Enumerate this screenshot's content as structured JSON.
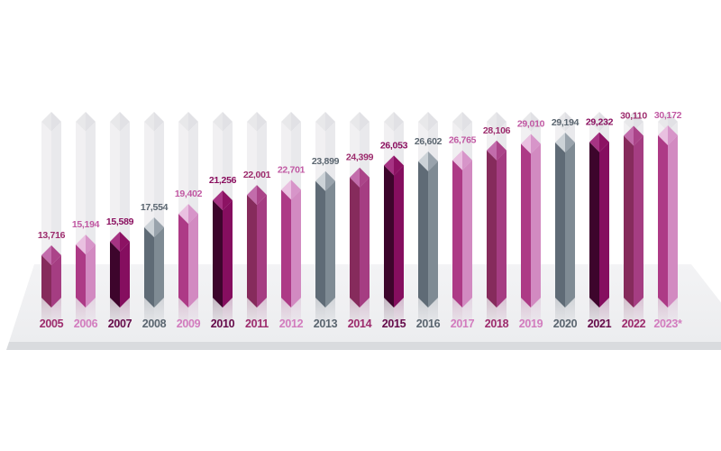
{
  "chart_data": {
    "type": "bar",
    "style": "isometric-3d-column-infographic",
    "title": "",
    "categories": [
      "2005",
      "2006",
      "2007",
      "2008",
      "2009",
      "2010",
      "2011",
      "2012",
      "2013",
      "2014",
      "2015",
      "2016",
      "2017",
      "2018",
      "2019",
      "2020",
      "2021",
      "2022",
      "2023*"
    ],
    "values": [
      13716,
      15194,
      15589,
      17554,
      19402,
      21256,
      22001,
      22701,
      23899,
      24399,
      26053,
      26602,
      26765,
      28106,
      29010,
      29194,
      29232,
      30110,
      30172
    ],
    "value_labels": [
      "13,716",
      "15,194",
      "15,589",
      "17,554",
      "19,402",
      "21,256",
      "22,001",
      "22,701",
      "23,899",
      "24,399",
      "26,053",
      "26,602",
      "26,765",
      "28,106",
      "29,010",
      "29,194",
      "29,232",
      "30,110",
      "30,172"
    ],
    "xlabel": "",
    "ylabel": "",
    "ylim": [
      0,
      32000
    ],
    "grid": false,
    "legend": "none",
    "family_by_year": [
      "medium",
      "pink",
      "dark",
      "gray",
      "pink",
      "dark",
      "medium",
      "pink",
      "gray",
      "medium",
      "dark",
      "gray",
      "pink",
      "medium",
      "pink",
      "gray",
      "dark",
      "medium",
      "pink"
    ],
    "color_families": {
      "dark": {
        "left": "#3d052c",
        "right": "#850e5f",
        "top_left": "#a63383",
        "top_right": "#8c1263",
        "value": "#8a0f5f",
        "year": "#650b4a"
      },
      "medium": {
        "left": "#862b5c",
        "right": "#a53d82",
        "top_left": "#c26cab",
        "top_right": "#ab4489",
        "value": "#9d2c6d",
        "year": "#9d2c6d"
      },
      "pink": {
        "left": "#ad3a86",
        "right": "#d28ac1",
        "top_left": "#e9c0e0",
        "top_right": "#d795c9",
        "value": "#c159a3",
        "year": "#d27cbe"
      },
      "gray": {
        "left": "#5f6b76",
        "right": "#7f8b94",
        "top_left": "#ccd2d7",
        "top_right": "#99a3ac",
        "value": "#5b6670",
        "year": "#5b6670"
      }
    },
    "background": {
      "page": "#ffffff",
      "ghost_left": "#f1f0f2",
      "ghost_right": "#e9e9ec",
      "ghost_top_left": "#e8e8ea",
      "ghost_top_right": "#e1e1e5",
      "floor_top": "#f3f3f5",
      "floor_bottom": "#ecedef",
      "floor_edge": "#d9dbde"
    }
  }
}
